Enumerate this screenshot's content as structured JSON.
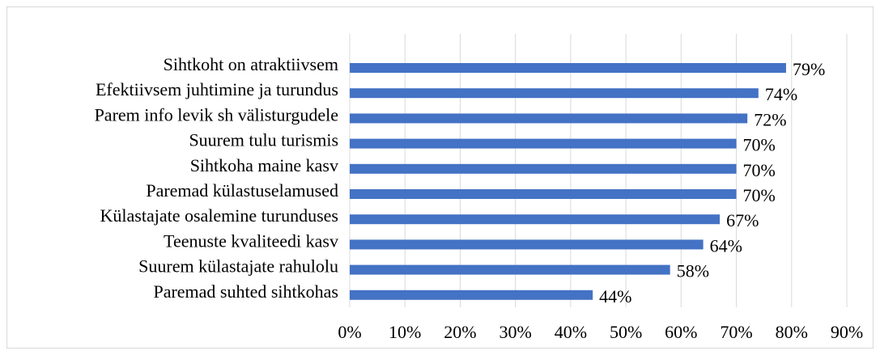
{
  "chart_data": {
    "type": "bar",
    "orientation": "horizontal",
    "categories": [
      "Sihtkoht on atraktiivsem",
      "Efektiivsem juhtimine ja turundus",
      "Parem info levik sh välisturgudele",
      "Suurem tulu turismis",
      "Sihtkoha maine kasv",
      "Paremad külastuselamused",
      "Külastajate osalemine turunduses",
      "Teenuste kvaliteedi kasv",
      "Suurem külastajate rahulolu",
      "Paremad suhted sihtkohas"
    ],
    "values": [
      79,
      74,
      72,
      70,
      70,
      70,
      67,
      64,
      58,
      44
    ],
    "value_labels": [
      "79%",
      "74%",
      "72%",
      "70%",
      "70%",
      "70%",
      "67%",
      "64%",
      "58%",
      "44%"
    ],
    "color": "#4472c4",
    "xlim": [
      0,
      90
    ],
    "xticks": [
      {
        "value": 0,
        "label": "0%"
      },
      {
        "value": 10,
        "label": "10%"
      },
      {
        "value": 20,
        "label": "20%"
      },
      {
        "value": 30,
        "label": "30%"
      },
      {
        "value": 40,
        "label": "40%"
      },
      {
        "value": 50,
        "label": "50%"
      },
      {
        "value": 60,
        "label": "60%"
      },
      {
        "value": 70,
        "label": "70%"
      },
      {
        "value": 80,
        "label": "80%"
      },
      {
        "value": 90,
        "label": "90%"
      }
    ],
    "grid": true
  }
}
